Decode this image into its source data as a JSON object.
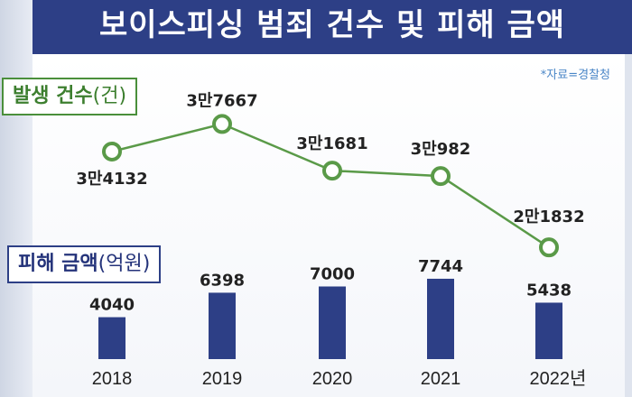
{
  "title": "보이스피싱 범죄 건수 및 피해 금액",
  "source": "*자료=경찰청",
  "colors": {
    "header": "#2d3f86",
    "line": "#5a9a48",
    "bar": "#2d3f86",
    "legend_cases": "#4a8f3b",
    "legend_damage": "#2d3f86"
  },
  "chart_data": {
    "type": "bar+line",
    "categories": [
      "2018",
      "2019",
      "2020",
      "2021",
      "2022년"
    ],
    "series": [
      {
        "name": "발생 건수(건)",
        "type": "line",
        "values": [
          34132,
          37667,
          31681,
          30982,
          21832
        ],
        "labels": [
          "3만4132",
          "3만7667",
          "3만1681",
          "3만982",
          "2만1832"
        ]
      },
      {
        "name": "피해 금액(억원)",
        "type": "bar",
        "values": [
          4040,
          6398,
          7000,
          7744,
          5438
        ],
        "labels": [
          "4040",
          "6398",
          "7000",
          "7744",
          "5438"
        ]
      }
    ]
  },
  "legend": {
    "cases": "발생 건수",
    "cases_unit": "(건)",
    "damage": "피해 금액",
    "damage_unit": "(억원)"
  }
}
